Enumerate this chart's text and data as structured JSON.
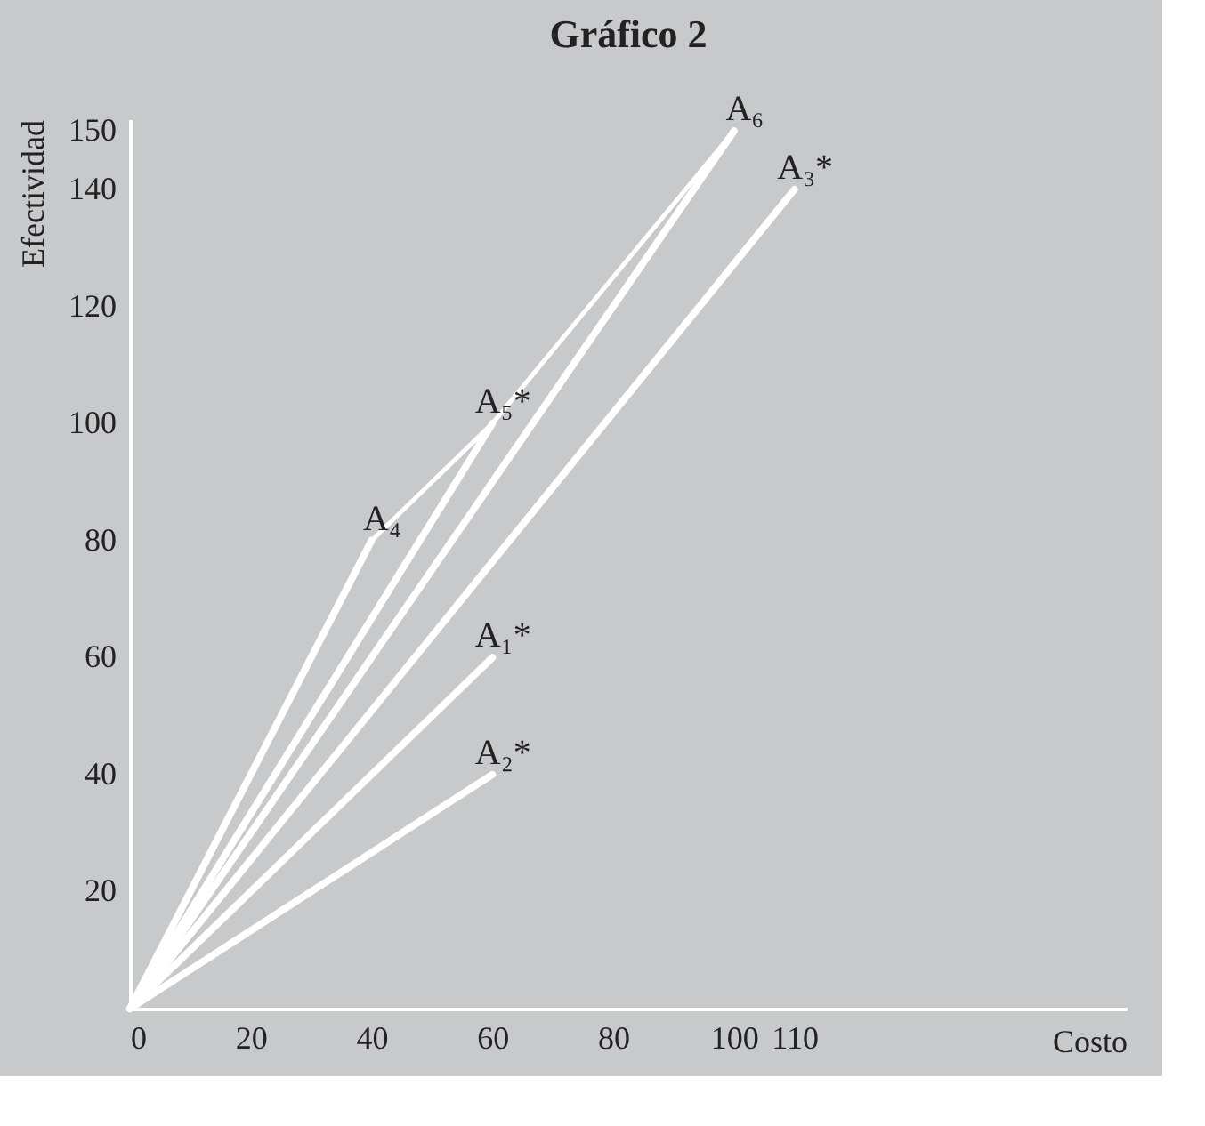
{
  "chart_data": {
    "type": "line",
    "title": "Gráfico 2",
    "xlabel": "Costo",
    "ylabel": "Efectividad",
    "xlim": [
      0,
      165
    ],
    "ylim": [
      0,
      152
    ],
    "xticks": [
      0,
      20,
      40,
      60,
      80,
      100,
      110
    ],
    "yticks": [
      20,
      40,
      60,
      80,
      100,
      120,
      140,
      150
    ],
    "grid": false,
    "marker": "none",
    "line_style": "solid",
    "series": [
      {
        "color": "#ffffff",
        "x": [
          0,
          40
        ],
        "values": [
          0,
          80
        ]
      },
      {
        "color": "#ffffff",
        "x": [
          0,
          60
        ],
        "values": [
          0,
          100
        ]
      },
      {
        "color": "#ffffff",
        "x": [
          0,
          100
        ],
        "values": [
          0,
          150
        ]
      },
      {
        "color": "#ffffff",
        "x": [
          0,
          110
        ],
        "values": [
          0,
          140
        ]
      },
      {
        "color": "#ffffff",
        "x": [
          0,
          60
        ],
        "values": [
          0,
          60
        ]
      },
      {
        "color": "#ffffff",
        "x": [
          0,
          60
        ],
        "values": [
          0,
          40
        ]
      },
      {
        "color": "#ffffff",
        "x": [
          40,
          60,
          100
        ],
        "values": [
          80,
          100,
          150
        ]
      }
    ],
    "annotations": [
      {
        "text": "A₄",
        "x": 40,
        "y": 80
      },
      {
        "text": "A₅*",
        "x": 60,
        "y": 100
      },
      {
        "text": "A₆",
        "x": 100,
        "y": 150
      },
      {
        "text": "A₃*",
        "x": 110,
        "y": 140
      },
      {
        "text": "A₁*",
        "x": 60,
        "y": 60
      },
      {
        "text": "A₂*",
        "x": 60,
        "y": 40
      }
    ]
  }
}
